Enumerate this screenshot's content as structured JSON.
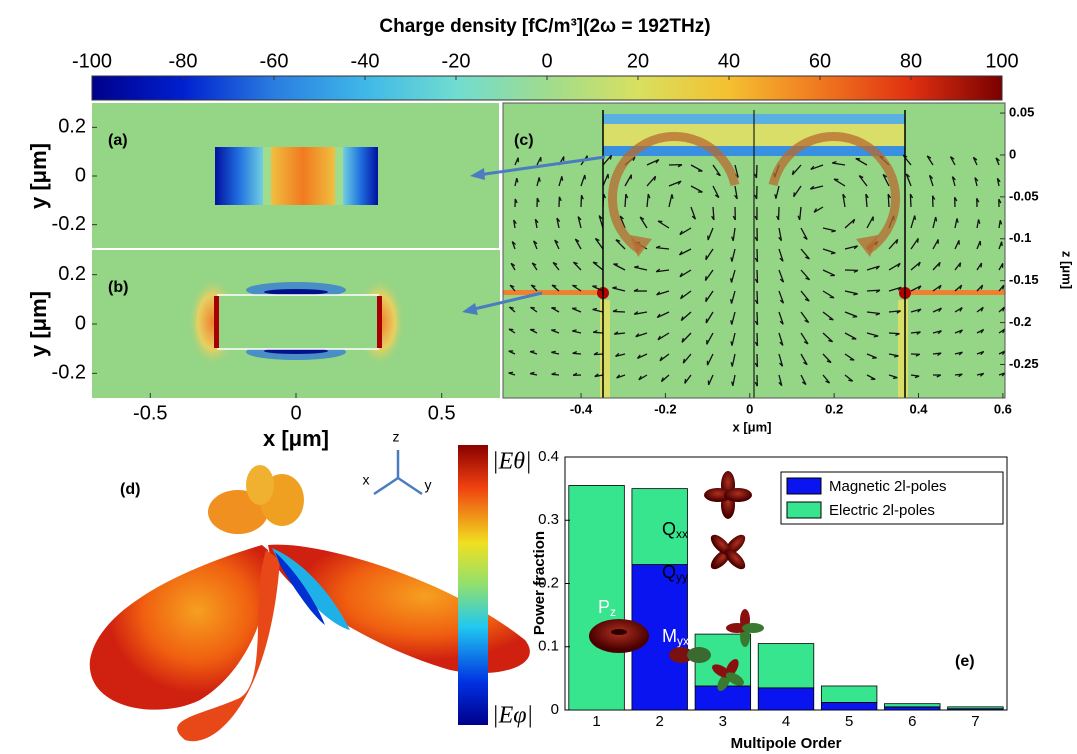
{
  "figure": {
    "colorbar": {
      "title": "Charge density [fC/m³](2ω = 192THz)",
      "clim": [
        -100,
        100
      ],
      "ticks": [
        -100,
        -80,
        -60,
        -40,
        -20,
        0,
        20,
        40,
        60,
        80,
        100
      ]
    },
    "panel_a": {
      "label": "(a)",
      "ylabel": "y [μm]",
      "ylim": [
        -0.3,
        0.3
      ],
      "yticks": [
        0.2,
        0,
        -0.2
      ]
    },
    "panel_b": {
      "label": "(b)",
      "ylabel": "y [μm]",
      "xlabel": "x [μm]",
      "xlim": [
        -0.7,
        0.7
      ],
      "xticks": [
        -0.5,
        0,
        0.5
      ],
      "ylim": [
        -0.3,
        0.3
      ],
      "yticks": [
        0.2,
        0,
        -0.2
      ]
    },
    "panel_c": {
      "label": "(c)",
      "xlabel": "x [μm]",
      "zlabel": "z [μm]",
      "xlim": [
        -0.585,
        0.605
      ],
      "xticks": [
        -0.4,
        -0.2,
        0,
        0.2,
        0.4,
        0.6
      ],
      "zlim": [
        -0.29,
        0.062
      ],
      "zticks": [
        0.05,
        0,
        -0.05,
        -0.1,
        -0.15,
        -0.2,
        -0.25
      ]
    },
    "panel_d": {
      "label": "(d)",
      "axes": [
        "z",
        "x",
        "y"
      ],
      "colorbar_top": "|Eθ|",
      "colorbar_bottom": "|Eφ|"
    }
  },
  "chart_data": {
    "type": "bar",
    "stacked": true,
    "xlabel": "Multipole Order",
    "ylabel": "Power fraction",
    "label": "(e)",
    "categories": [
      "1",
      "2",
      "3",
      "4",
      "5",
      "6",
      "7"
    ],
    "series": [
      {
        "name": "Magnetic 2l-poles",
        "color": "#0a14f0",
        "values": [
          0,
          0.23,
          0.038,
          0.035,
          0.012,
          0.005,
          0.002
        ]
      },
      {
        "name": "Electric 2l-poles",
        "color": "#38e58f",
        "values": [
          0.355,
          0.12,
          0.082,
          0.07,
          0.026,
          0.005,
          0.003
        ]
      }
    ],
    "ylim": [
      0,
      0.4
    ],
    "yticks": [
      0,
      0.1,
      0.2,
      0.3,
      0.4
    ],
    "legend": "upper right",
    "annotations": [
      {
        "main": "P",
        "sub": "z"
      },
      {
        "main": "Q",
        "sub": "xx"
      },
      {
        "main": "Q",
        "sub": "yy"
      },
      {
        "main": "M",
        "sub": "yx"
      }
    ]
  }
}
